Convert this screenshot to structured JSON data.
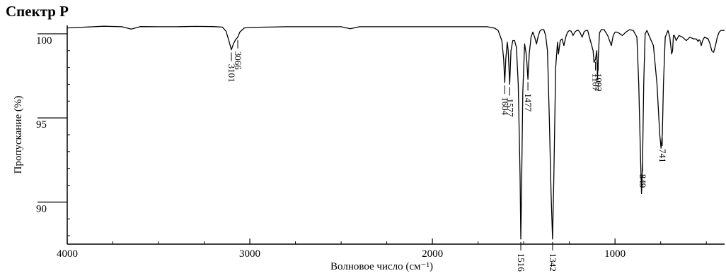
{
  "title": "Спектр P",
  "chart_data": {
    "type": "line",
    "title": "Спектр P",
    "xlabel": "Волновое число (см⁻¹)",
    "ylabel": "Пропускание  (%)",
    "x_reversed": true,
    "xlim": [
      4000,
      400
    ],
    "ylim": [
      87.5,
      100.5
    ],
    "x_ticks": [
      4000,
      3000,
      2000,
      1000
    ],
    "y_ticks": [
      100,
      95,
      90
    ],
    "grid": false,
    "series": [
      {
        "x": [
          4000,
          3900,
          3800,
          3700,
          3650,
          3600,
          3500,
          3400,
          3300,
          3200,
          3150,
          3130,
          3115,
          3101,
          3090,
          3078,
          3066,
          3055,
          3030,
          3000,
          2900,
          2800,
          2700,
          2600,
          2500,
          2450,
          2400,
          2300,
          2200,
          2100,
          2000,
          1950,
          1900,
          1800,
          1750,
          1700,
          1680,
          1660,
          1640,
          1620,
          1610,
          1604,
          1598,
          1590,
          1585,
          1577,
          1570,
          1560,
          1550,
          1540,
          1530,
          1520,
          1516,
          1512,
          1505,
          1495,
          1485,
          1477,
          1470,
          1460,
          1450,
          1440,
          1430,
          1420,
          1410,
          1400,
          1390,
          1380,
          1370,
          1360,
          1350,
          1342,
          1335,
          1325,
          1315,
          1310,
          1300,
          1290,
          1280,
          1270,
          1260,
          1250,
          1240,
          1230,
          1220,
          1210,
          1200,
          1190,
          1180,
          1170,
          1160,
          1150,
          1140,
          1130,
          1120,
          1115,
          1107,
          1100,
          1096,
          1092,
          1085,
          1075,
          1060,
          1040,
          1020,
          1010,
          1000,
          990,
          980,
          960,
          940,
          920,
          900,
          880,
          870,
          860,
          855,
          849,
          843,
          835,
          825,
          810,
          790,
          770,
          755,
          748,
          741,
          735,
          725,
          710,
          700,
          690,
          685,
          680,
          675,
          665,
          650,
          630,
          610,
          590,
          570,
          555,
          545,
          540,
          535,
          528,
          520,
          510,
          500,
          490,
          480,
          470,
          460,
          450,
          440,
          430,
          420,
          410,
          400
        ],
        "y": [
          100.35,
          100.4,
          100.45,
          100.42,
          100.28,
          100.43,
          100.42,
          100.42,
          100.44,
          100.43,
          100.4,
          100.15,
          99.6,
          99.05,
          99.4,
          99.65,
          99.8,
          100.1,
          100.35,
          100.38,
          100.4,
          100.42,
          100.42,
          100.42,
          100.42,
          100.3,
          100.42,
          100.42,
          100.42,
          100.42,
          100.42,
          100.42,
          100.42,
          100.42,
          100.42,
          100.42,
          100.38,
          100.34,
          100.2,
          99.6,
          98.5,
          97.1,
          98.5,
          99.5,
          99.0,
          97.0,
          99.0,
          99.6,
          99.6,
          99.2,
          97.0,
          91.5,
          87.8,
          90.5,
          96.5,
          99.4,
          98.7,
          97.3,
          98.8,
          99.8,
          100.1,
          99.8,
          99.4,
          99.9,
          100.2,
          100.25,
          100.25,
          99.9,
          99.0,
          95.0,
          90.5,
          87.8,
          91.5,
          98.0,
          99.5,
          98.8,
          99.6,
          99.7,
          99.3,
          99.8,
          100.1,
          100.2,
          100.15,
          99.9,
          100.1,
          100.2,
          100.2,
          100.05,
          99.8,
          100.1,
          100.2,
          100.2,
          99.8,
          99.4,
          99.0,
          98.3,
          98.5,
          99.0,
          97.3,
          98.5,
          100.05,
          100.25,
          100.25,
          99.9,
          99.3,
          99.9,
          100.1,
          100.1,
          100.05,
          99.9,
          100.1,
          100.25,
          100.2,
          99.8,
          97.0,
          92.5,
          90.5,
          92.5,
          97.0,
          100.0,
          100.2,
          99.8,
          99.3,
          97.0,
          94.0,
          93.2,
          94.0,
          97.0,
          99.8,
          100.2,
          99.8,
          98.8,
          99.0,
          99.9,
          99.9,
          99.6,
          99.9,
          99.8,
          99.6,
          99.8,
          99.7,
          99.7,
          99.55,
          99.65,
          99.6,
          99.3,
          99.6,
          99.8,
          99.75,
          99.7,
          99.4,
          99.0,
          98.9,
          99.3,
          99.8,
          100.1,
          100.2,
          100.2,
          100.2
        ]
      }
    ],
    "annotations": [
      {
        "x": 3101,
        "label": "3101"
      },
      {
        "x": 3066,
        "label": "3066"
      },
      {
        "x": 1604,
        "label": "1604"
      },
      {
        "x": 1577,
        "label": "1577"
      },
      {
        "x": 1477,
        "label": "1477"
      },
      {
        "x": 1516,
        "label": "1516"
      },
      {
        "x": 1342,
        "label": "1342"
      },
      {
        "x": 1107,
        "label": "1107"
      },
      {
        "x": 1092,
        "label": "1092"
      },
      {
        "x": 849,
        "label": "849"
      },
      {
        "x": 741,
        "label": "741"
      }
    ]
  }
}
